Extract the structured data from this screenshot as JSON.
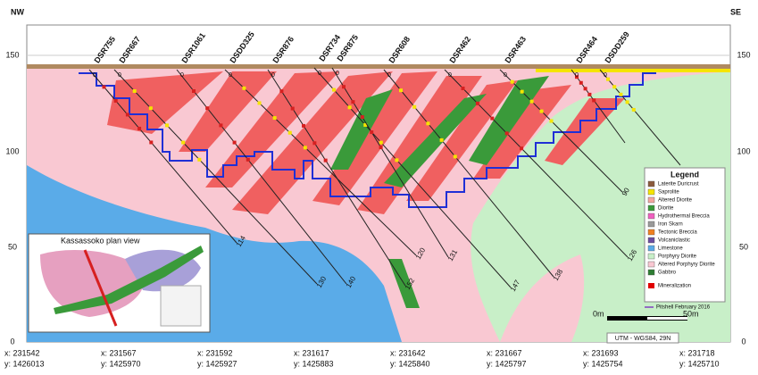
{
  "header": {
    "left": "NW",
    "right": "SE"
  },
  "elevation_ticks": [
    "150",
    "100",
    "50",
    "0"
  ],
  "holes": [
    {
      "name": "DSR755",
      "collar": "0",
      "depth": "114"
    },
    {
      "name": "DSR667",
      "collar": "0",
      "depth": "130"
    },
    {
      "name": "DSR1061",
      "collar": "0",
      "depth": "140"
    },
    {
      "name": "DSDD325",
      "collar": "0",
      "depth": "120"
    },
    {
      "name": "DSR876",
      "collar": "0",
      "depth": "152"
    },
    {
      "name": "DSR734",
      "collar": "0",
      "depth": "147"
    },
    {
      "name": "DSR875",
      "collar": "0",
      "depth": "131"
    },
    {
      "name": "DSR608",
      "collar": "0",
      "depth": "138"
    },
    {
      "name": "DSR462",
      "collar": "0",
      "depth": "126"
    },
    {
      "name": "DSR463",
      "collar": "0",
      "depth": "90"
    },
    {
      "name": "DSR464",
      "collar": "0"
    },
    {
      "name": "DSDD259",
      "collar": "0"
    }
  ],
  "legend": {
    "title": "Legend",
    "items": [
      "Laterite Duricrust",
      "Saprolite",
      "Altered Diorite",
      "Diorite",
      "Hydrothermal Breccia",
      "Iron Skarn",
      "Tectonic Breccia",
      "Volcaniclastic",
      "Limestone",
      "Porphyry Diorite",
      "Altered Porphyry Diorite",
      "Gabbro"
    ],
    "mineralization": "Mineralization",
    "pitshell": "Pitshell February 2016"
  },
  "inset": {
    "title": "Kassassoko plan view"
  },
  "scale": {
    "start": "0m",
    "end": "50m",
    "projection": "UTM - WGS84, 29N"
  },
  "coordinates": [
    {
      "x": "x: 231542",
      "y": "y: 1426013"
    },
    {
      "x": "x: 231567",
      "y": "y: 1425970"
    },
    {
      "x": "x: 231592",
      "y": "y: 1425927"
    },
    {
      "x": "x: 231617",
      "y": "y: 1425883"
    },
    {
      "x": "x: 231642",
      "y": "y: 1425840"
    },
    {
      "x": "x: 231667",
      "y": "y: 1425797"
    },
    {
      "x": "x: 231693",
      "y": "y: 1425754"
    },
    {
      "x": "x: 231718",
      "y": "y: 1425710"
    }
  ]
}
